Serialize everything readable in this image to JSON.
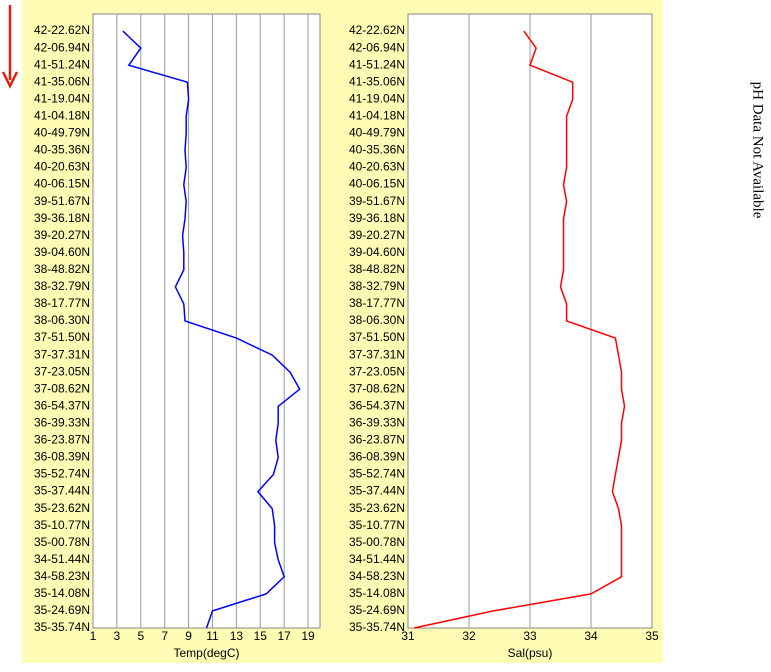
{
  "chart_data": [
    {
      "type": "line",
      "orientation": "horizontal",
      "x_label": "Temp(degC)",
      "categories": [
        "42-22.62N",
        "42-06.94N",
        "41-51.24N",
        "41-35.06N",
        "41-19.04N",
        "41-04.18N",
        "40-49.79N",
        "40-35.36N",
        "40-20.63N",
        "40-06.15N",
        "39-51.67N",
        "39-36.18N",
        "39-20.27N",
        "39-04.60N",
        "38-48.82N",
        "38-32.79N",
        "38-17.77N",
        "38-06.30N",
        "37-51.50N",
        "37-37.31N",
        "37-23.05N",
        "37-08.62N",
        "36-54.37N",
        "36-39.33N",
        "36-23.87N",
        "36-08.39N",
        "35-52.74N",
        "35-37.44N",
        "35-23.62N",
        "35-10.77N",
        "35-00.78N",
        "34-51.44N",
        "34-58.23N",
        "35-14.08N",
        "35-24.69N",
        "35-35.74N"
      ],
      "values": [
        3.5,
        5,
        4,
        8.9,
        9,
        8.8,
        8.8,
        8.7,
        8.8,
        8.6,
        8.8,
        8.7,
        8.5,
        8.6,
        8.6,
        7.9,
        8.6,
        8.7,
        13,
        16,
        17.5,
        18.3,
        16.5,
        16.5,
        16.3,
        16.5,
        16.1,
        14.8,
        16,
        16.2,
        16.2,
        16.5,
        17,
        15.5,
        11,
        10.5
      ],
      "color": "#0000ff",
      "xlim": [
        1,
        20
      ],
      "xticks": [
        1,
        3,
        5,
        7,
        9,
        11,
        13,
        15,
        17,
        19
      ],
      "grid": true
    },
    {
      "type": "line",
      "orientation": "horizontal",
      "x_label": "Sal(psu)",
      "categories": [
        "42-22.62N",
        "42-06.94N",
        "41-51.24N",
        "41-35.06N",
        "41-19.04N",
        "41-04.18N",
        "40-49.79N",
        "40-35.36N",
        "40-20.63N",
        "40-06.15N",
        "39-51.67N",
        "39-36.18N",
        "39-20.27N",
        "39-04.60N",
        "38-48.82N",
        "38-32.79N",
        "38-17.77N",
        "38-06.30N",
        "37-51.50N",
        "37-37.31N",
        "37-23.05N",
        "37-08.62N",
        "36-54.37N",
        "36-39.33N",
        "36-23.87N",
        "36-08.39N",
        "35-52.74N",
        "35-37.44N",
        "35-23.62N",
        "35-10.77N",
        "35-00.78N",
        "34-51.44N",
        "34-58.23N",
        "35-14.08N",
        "35-24.69N",
        "35-35.74N"
      ],
      "values": [
        32.9,
        33.1,
        33,
        33.7,
        33.7,
        33.6,
        33.6,
        33.6,
        33.6,
        33.55,
        33.6,
        33.55,
        33.55,
        33.55,
        33.55,
        33.5,
        33.6,
        33.6,
        34.4,
        34.45,
        34.5,
        34.5,
        34.55,
        34.5,
        34.5,
        34.45,
        34.4,
        34.35,
        34.45,
        34.5,
        34.5,
        34.5,
        34.5,
        34.0,
        32.4,
        31.1
      ],
      "color": "#ff0000",
      "xlim": [
        31,
        35
      ],
      "xticks": [
        31,
        32,
        33,
        34,
        35
      ],
      "grid": true
    }
  ],
  "note": "pH Data Not Available"
}
